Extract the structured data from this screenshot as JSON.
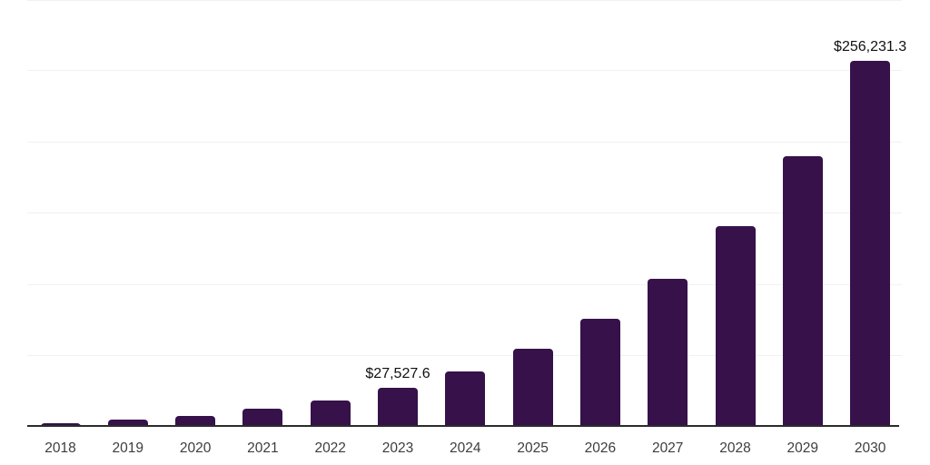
{
  "chart_data": {
    "type": "bar",
    "title": "",
    "categories": [
      "2018",
      "2019",
      "2020",
      "2021",
      "2022",
      "2023",
      "2024",
      "2025",
      "2026",
      "2027",
      "2028",
      "2029",
      "2030"
    ],
    "values": [
      2800,
      5100,
      7600,
      12700,
      18400,
      27527.6,
      38800,
      54600,
      75600,
      103600,
      140400,
      189300,
      256231.3
    ],
    "value_labels": [
      "",
      "",
      "",
      "",
      "",
      "$27,527.6",
      "",
      "",
      "",
      "",
      "",
      "",
      "$256,231.3"
    ],
    "xlabel": "",
    "ylabel": "",
    "ylim": [
      0,
      300000
    ],
    "gridline_step": 50000,
    "grid": true,
    "legend": false,
    "y_tick_labels_visible": false,
    "colors": {
      "bar_fill": "#36114A",
      "axis_line": "#2b2b2b",
      "gridline": "#f1f1f4",
      "value_label_text": "#111111",
      "tick_label_text": "#3d3d3d",
      "background": "#ffffff"
    }
  }
}
